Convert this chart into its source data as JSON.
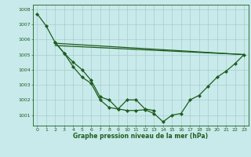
{
  "line1_x": [
    0,
    1,
    2,
    3,
    4,
    5,
    6,
    7,
    8,
    9,
    10,
    11,
    12,
    13
  ],
  "line1_y": [
    1007.7,
    1006.9,
    1005.8,
    1005.1,
    1004.2,
    1003.5,
    1003.1,
    1002.0,
    1001.5,
    1001.4,
    1002.0,
    1002.0,
    1001.4,
    1001.3
  ],
  "line2_x": [
    2,
    3,
    4,
    5,
    6,
    7,
    8,
    9,
    10,
    11,
    12,
    13,
    14,
    15,
    16,
    17,
    18,
    19,
    20,
    21,
    22,
    23
  ],
  "line2_y": [
    1005.8,
    1005.1,
    1004.5,
    1004.0,
    1003.3,
    1002.2,
    1002.0,
    1001.4,
    1001.3,
    1001.3,
    1001.35,
    1001.1,
    1000.55,
    1001.0,
    1001.1,
    1002.0,
    1002.3,
    1002.9,
    1003.5,
    1003.9,
    1004.4,
    1005.0
  ],
  "line3_x": [
    2,
    23
  ],
  "line3_y": [
    1005.75,
    1005.0
  ],
  "line4_x": [
    2,
    23
  ],
  "line4_y": [
    1005.6,
    1005.0
  ],
  "ylim": [
    1000.3,
    1008.3
  ],
  "yticks": [
    1001,
    1002,
    1003,
    1004,
    1005,
    1006,
    1007,
    1008
  ],
  "xlim": [
    -0.5,
    23.5
  ],
  "xticks": [
    0,
    1,
    2,
    3,
    4,
    5,
    6,
    7,
    8,
    9,
    10,
    11,
    12,
    13,
    14,
    15,
    16,
    17,
    18,
    19,
    20,
    21,
    22,
    23
  ],
  "xlabel": "Graphe pression niveau de la mer (hPa)",
  "line_color": "#1e5c1e",
  "bg_color": "#c8eaea",
  "grid_color": "#a8cccc",
  "marker": "D",
  "marker_size": 2.2,
  "linewidth": 0.9
}
